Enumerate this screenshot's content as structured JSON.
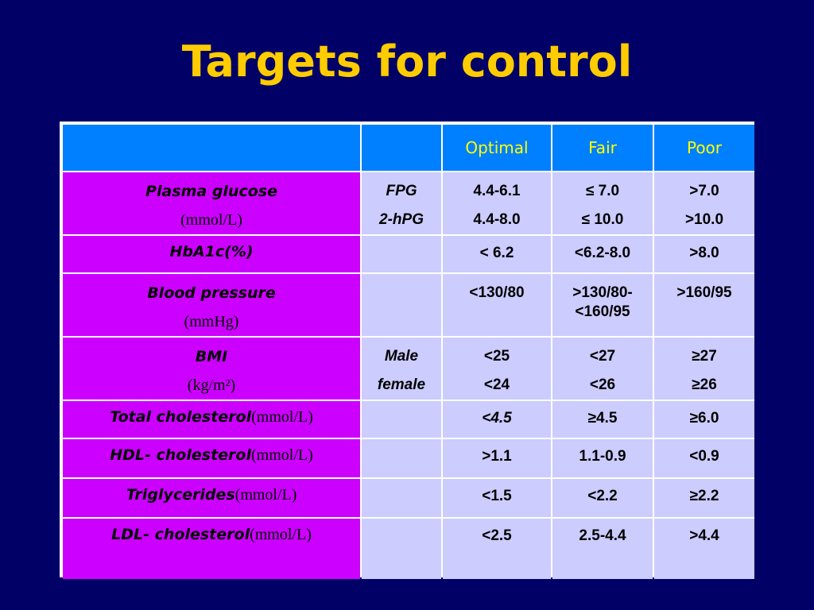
{
  "title": "Targets for control",
  "table": {
    "headers": [
      "",
      "",
      "Optimal",
      "Fair",
      "Poor"
    ],
    "rows": [
      {
        "name": "Plasma glucose",
        "unit": "(mmol/L)",
        "sub": [
          "FPG",
          "2-hPG"
        ],
        "optimal": [
          "4.4-6.1",
          "4.4-8.0"
        ],
        "fair": [
          "≤ 7.0",
          "≤ 10.0"
        ],
        "poor": [
          ">7.0",
          ">10.0"
        ]
      },
      {
        "name": "HbA1c(%)",
        "unit": "",
        "sub": [],
        "optimal": [
          "< 6.2"
        ],
        "fair": [
          "<6.2-8.0"
        ],
        "poor": [
          ">8.0"
        ]
      },
      {
        "name": "Blood pressure",
        "unit": "(mmHg)",
        "sub": [],
        "optimal": [
          "<130/80"
        ],
        "fair": [
          ">130/80-",
          "<160/95"
        ],
        "poor": [
          ">160/95"
        ]
      },
      {
        "name": "BMI",
        "unit": "(kg/m²)",
        "sub": [
          "Male",
          "female"
        ],
        "optimal": [
          "<25",
          "<24"
        ],
        "fair": [
          "<27",
          "<26"
        ],
        "poor": [
          "≥27",
          "≥26"
        ]
      },
      {
        "name": "Total cholesterol",
        "unit": "(mmol/L)",
        "sub": [],
        "optimal": [
          "<4.5"
        ],
        "fair": [
          "≥4.5"
        ],
        "poor": [
          "≥6.0"
        ]
      },
      {
        "name": "HDL- cholesterol",
        "unit": "(mmol/L)",
        "sub": [],
        "optimal": [
          ">1.1"
        ],
        "fair": [
          "1.1-0.9"
        ],
        "poor": [
          "<0.9"
        ]
      },
      {
        "name": "Triglycerides",
        "unit": "(mmol/L)",
        "sub": [],
        "optimal": [
          "<1.5"
        ],
        "fair": [
          "<2.2"
        ],
        "poor": [
          "≥2.2"
        ]
      },
      {
        "name": "LDL- cholesterol",
        "unit": "(mmol/L)",
        "sub": [],
        "optimal": [
          "<2.5"
        ],
        "fair": [
          "2.5-4.4"
        ],
        "poor": [
          ">4.4"
        ]
      }
    ]
  },
  "colors": {
    "background": "#000066",
    "title": "#FFCC00",
    "header_bg": "#0080FF",
    "header_text": "#FFFF00",
    "param_bg": "#CC00FF",
    "cell_bg": "#CCCCFF"
  }
}
